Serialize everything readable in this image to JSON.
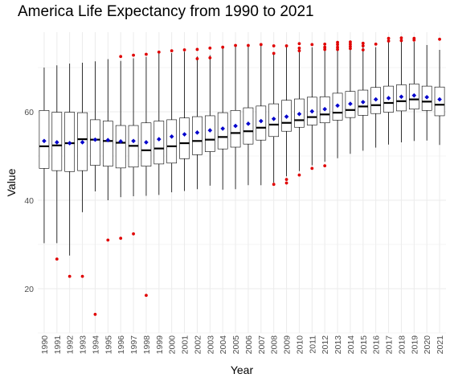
{
  "chart_data": {
    "type": "boxplot",
    "title": "America Life Expectancy from 1990 to 2021",
    "xlabel": "Year",
    "ylabel": "Value",
    "ylim": [
      10,
      78
    ],
    "yticks": [
      20,
      40,
      60
    ],
    "grid": true,
    "legend": "none",
    "colors": {
      "box_fill": "#ffffff",
      "box_line": "#000000",
      "median": "#000000",
      "mean_point": "#0000cc",
      "outlier": "#e00000",
      "grid": "#ebebeb"
    },
    "categories": [
      "1990",
      "1991",
      "1992",
      "1993",
      "1994",
      "1995",
      "1996",
      "1997",
      "1998",
      "1999",
      "2000",
      "2001",
      "2002",
      "2003",
      "2004",
      "2005",
      "2006",
      "2007",
      "2008",
      "2009",
      "2010",
      "2011",
      "2012",
      "2013",
      "2014",
      "2015",
      "2016",
      "2017",
      "2018",
      "2019",
      "2020",
      "2021"
    ],
    "boxes": [
      {
        "year": "1990",
        "whisker_low": 30.3,
        "q1": 47.2,
        "median": 52.2,
        "q3": 60.3,
        "whisker_high": 70.0,
        "mean": 53.4,
        "outliers": []
      },
      {
        "year": "1991",
        "whisker_low": 30.3,
        "q1": 46.7,
        "median": 52.4,
        "q3": 59.9,
        "whisker_high": 70.5,
        "mean": 53.1,
        "outliers": [
          26.7
        ]
      },
      {
        "year": "1992",
        "whisker_low": 27.5,
        "q1": 46.5,
        "median": 52.9,
        "q3": 59.9,
        "whisker_high": 70.9,
        "mean": 52.9,
        "outliers": [
          22.8
        ]
      },
      {
        "year": "1993",
        "whisker_low": 37.3,
        "q1": 46.7,
        "median": 53.8,
        "q3": 59.8,
        "whisker_high": 71.1,
        "mean": 53.1,
        "outliers": [
          22.8
        ]
      },
      {
        "year": "1994",
        "whisker_low": 42.0,
        "q1": 47.9,
        "median": 53.7,
        "q3": 58.2,
        "whisker_high": 71.4,
        "mean": 53.7,
        "outliers": [
          14.2
        ]
      },
      {
        "year": "1995",
        "whisker_low": 40.0,
        "q1": 47.7,
        "median": 53.4,
        "q3": 57.9,
        "whisker_high": 71.9,
        "mean": 53.6,
        "outliers": [
          31.0
        ]
      },
      {
        "year": "1996",
        "whisker_low": 40.7,
        "q1": 47.3,
        "median": 53.0,
        "q3": 56.9,
        "whisker_high": 71.5,
        "mean": 53.3,
        "outliers": [
          31.4,
          72.5
        ]
      },
      {
        "year": "1997",
        "whisker_low": 40.9,
        "q1": 47.5,
        "median": 52.3,
        "q3": 56.9,
        "whisker_high": 72.1,
        "mean": 53.4,
        "outliers": [
          32.4,
          72.8
        ]
      },
      {
        "year": "1998",
        "whisker_low": 41.0,
        "q1": 47.7,
        "median": 51.3,
        "q3": 57.5,
        "whisker_high": 72.4,
        "mean": 53.1,
        "outliers": [
          18.5,
          73.0
        ]
      },
      {
        "year": "1999",
        "whisker_low": 41.2,
        "q1": 48.2,
        "median": 51.7,
        "q3": 57.9,
        "whisker_high": 73.2,
        "mean": 53.8,
        "outliers": [
          73.5
        ]
      },
      {
        "year": "2000",
        "whisker_low": 41.8,
        "q1": 48.4,
        "median": 52.2,
        "q3": 58.2,
        "whisker_high": 73.3,
        "mean": 54.4,
        "outliers": [
          73.8
        ]
      },
      {
        "year": "2001",
        "whisker_low": 42.1,
        "q1": 49.4,
        "median": 52.9,
        "q3": 58.6,
        "whisker_high": 73.6,
        "mean": 54.9,
        "outliers": [
          74.0
        ]
      },
      {
        "year": "2002",
        "whisker_low": 42.5,
        "q1": 50.3,
        "median": 53.4,
        "q3": 58.9,
        "whisker_high": 72.5,
        "mean": 55.3,
        "outliers": [
          72.0,
          74.1
        ]
      },
      {
        "year": "2003",
        "whisker_low": 43.3,
        "q1": 51.0,
        "median": 53.7,
        "q3": 59.1,
        "whisker_high": 72.8,
        "mean": 55.8,
        "outliers": [
          72.2,
          74.4
        ]
      },
      {
        "year": "2004",
        "whisker_low": 42.4,
        "q1": 51.6,
        "median": 54.3,
        "q3": 59.8,
        "whisker_high": 74.4,
        "mean": 56.2,
        "outliers": [
          74.6
        ]
      },
      {
        "year": "2005",
        "whisker_low": 42.5,
        "q1": 52.0,
        "median": 55.2,
        "q3": 60.3,
        "whisker_high": 74.7,
        "mean": 56.8,
        "outliers": [
          75.0
        ]
      },
      {
        "year": "2006",
        "whisker_low": 43.4,
        "q1": 52.7,
        "median": 55.6,
        "q3": 60.9,
        "whisker_high": 74.8,
        "mean": 57.3,
        "outliers": [
          75.0
        ]
      },
      {
        "year": "2007",
        "whisker_low": 43.4,
        "q1": 53.6,
        "median": 56.4,
        "q3": 61.3,
        "whisker_high": 75.0,
        "mean": 57.9,
        "outliers": [
          75.2
        ]
      },
      {
        "year": "2008",
        "whisker_low": 44.0,
        "q1": 54.4,
        "median": 57.1,
        "q3": 61.8,
        "whisker_high": 73.0,
        "mean": 58.4,
        "outliers": [
          43.6,
          73.2,
          74.9
        ]
      },
      {
        "year": "2009",
        "whisker_low": 45.4,
        "q1": 55.6,
        "median": 57.5,
        "q3": 62.6,
        "whisker_high": 74.8,
        "mean": 58.9,
        "outliers": [
          43.9,
          44.7,
          74.9
        ]
      },
      {
        "year": "2010",
        "whisker_low": 46.6,
        "q1": 56.5,
        "median": 58.1,
        "q3": 62.9,
        "whisker_high": 73.5,
        "mean": 59.5,
        "outliers": [
          45.7,
          73.8,
          74.4,
          75.4
        ]
      },
      {
        "year": "2011",
        "whisker_low": 47.9,
        "q1": 57.0,
        "median": 58.8,
        "q3": 63.3,
        "whisker_high": 74.6,
        "mean": 60.1,
        "outliers": [
          47.2,
          75.2
        ]
      },
      {
        "year": "2012",
        "whisker_low": 48.7,
        "q1": 57.5,
        "median": 59.4,
        "q3": 63.4,
        "whisker_high": 74.5,
        "mean": 60.6,
        "outliers": [
          47.8,
          74.1,
          74.6,
          75.3
        ]
      },
      {
        "year": "2013",
        "whisker_low": 49.5,
        "q1": 58.1,
        "median": 59.8,
        "q3": 64.2,
        "whisker_high": 74.8,
        "mean": 61.4,
        "outliers": [
          74.1,
          74.6,
          75.2,
          75.7
        ]
      },
      {
        "year": "2014",
        "whisker_low": 50.5,
        "q1": 58.7,
        "median": 60.4,
        "q3": 64.6,
        "whisker_high": 75.0,
        "mean": 61.8,
        "outliers": [
          74.3,
          74.8,
          75.3,
          75.8
        ]
      },
      {
        "year": "2015",
        "whisker_low": 51.2,
        "q1": 59.2,
        "median": 61.2,
        "q3": 64.9,
        "whisker_high": 75.0,
        "mean": 62.2,
        "outliers": [
          74.0,
          74.9,
          75.5
        ]
      },
      {
        "year": "2016",
        "whisker_low": 51.9,
        "q1": 59.6,
        "median": 61.5,
        "q3": 65.5,
        "whisker_high": 74.6,
        "mean": 62.8,
        "outliers": [
          75.3
        ]
      },
      {
        "year": "2017",
        "whisker_low": 52.6,
        "q1": 59.9,
        "median": 62.0,
        "q3": 65.8,
        "whisker_high": 75.8,
        "mean": 63.1,
        "outliers": [
          76.0,
          76.6
        ]
      },
      {
        "year": "2018",
        "whisker_low": 53.1,
        "q1": 60.2,
        "median": 62.4,
        "q3": 66.1,
        "whisker_high": 75.9,
        "mean": 63.4,
        "outliers": [
          76.1,
          76.7
        ]
      },
      {
        "year": "2019",
        "whisker_low": 53.4,
        "q1": 60.6,
        "median": 62.8,
        "q3": 66.3,
        "whisker_high": 75.8,
        "mean": 63.7,
        "outliers": [
          76.2,
          76.6
        ]
      },
      {
        "year": "2020",
        "whisker_low": 53.5,
        "q1": 60.3,
        "median": 62.3,
        "q3": 65.8,
        "whisker_high": 75.1,
        "mean": 63.3,
        "outliers": []
      },
      {
        "year": "2021",
        "whisker_low": 52.5,
        "q1": 59.1,
        "median": 61.6,
        "q3": 65.6,
        "whisker_high": 74.0,
        "mean": 62.8,
        "outliers": [
          76.4
        ]
      }
    ]
  }
}
